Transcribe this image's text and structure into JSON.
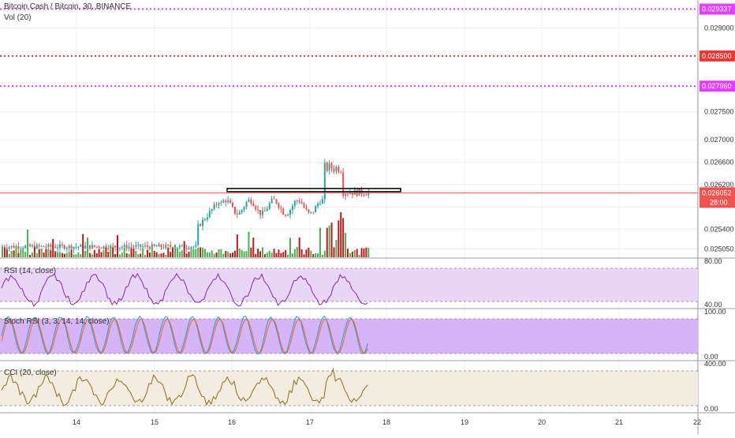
{
  "symbol": {
    "title": "Bitcoin Cash / Bitcoin, 30, BINANCE",
    "volume_indicator": "Vol (20)"
  },
  "price_axis": {
    "ticks": [
      "0.029000",
      "0.027500",
      "0.027000",
      "0.026600",
      "0.026200",
      "0.025400",
      "0.025050"
    ],
    "min": 0.0249,
    "max": 0.0295
  },
  "levels": [
    {
      "price": 0.029337,
      "label": "0.029337",
      "color": "#e040fb",
      "style": "dotted"
    },
    {
      "price": 0.0285,
      "label": "0.028500",
      "color": "#e53935",
      "style": "dotted"
    },
    {
      "price": 0.02796,
      "label": "0.027960",
      "color": "#e040fb",
      "style": "dotted"
    }
  ],
  "current_price": {
    "label": "0.026052",
    "value": 0.026052,
    "countdown": "28:00",
    "color": "#ef5350"
  },
  "support_box": {
    "price_top": 0.02613,
    "price_bottom": 0.02608
  },
  "panels": {
    "rsi": {
      "label": "RSI (14, close)",
      "ticks": [
        "80.00",
        "40.00"
      ],
      "color": "#8e24aa",
      "band_color": "#e9d6f7"
    },
    "stoch": {
      "label": "Stoch RSI (3, 3, 14, 14, close)",
      "ticks": [
        "100.00",
        "0.00"
      ],
      "k_color": "#2196f3",
      "d_color": "#ef6c00",
      "band_color": "#d6b4f7"
    },
    "cci": {
      "label": "CCI (20, close)",
      "ticks": [
        "400.00",
        "0.00"
      ],
      "color": "#8d6e1a",
      "band_color": "#f3ece0"
    }
  },
  "time_axis": {
    "labels": [
      "14",
      "15",
      "16",
      "17",
      "18",
      "19",
      "20",
      "21",
      "22"
    ]
  },
  "colors": {
    "up": "#26a69a",
    "down": "#ef5350",
    "volume_up": "#4caf50",
    "volume_down": "#b71c1c",
    "volume_ma": "#ff7043",
    "grid": "#eceff1"
  }
}
